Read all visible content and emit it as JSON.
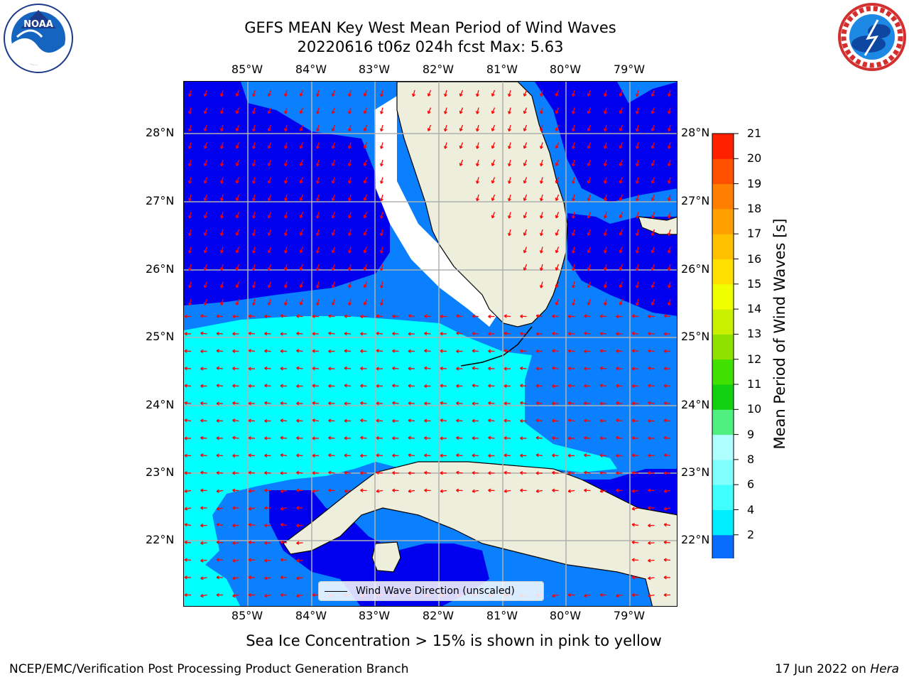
{
  "title": {
    "line1": "GEFS MEAN Key West Mean Period of Wind Waves",
    "line2": "20220616 t06z 024h fcst   Max: 5.63"
  },
  "logos": {
    "left": "NOAA",
    "right": "NATIONAL WEATHER SERVICE"
  },
  "axes": {
    "lon_labels": [
      "85°W",
      "84°W",
      "83°W",
      "82°W",
      "81°W",
      "80°W",
      "79°W"
    ],
    "lat_labels": [
      "28°N",
      "27°N",
      "26°N",
      "25°N",
      "24°N",
      "23°N",
      "22°N"
    ]
  },
  "legend": {
    "label": "Wind Wave Direction (unscaled)"
  },
  "colorbar": {
    "label": "Mean Period of Wind Waves [s]",
    "ticks": [
      "2",
      "4",
      "6",
      "8",
      "9",
      "10",
      "11",
      "12",
      "13",
      "14",
      "15",
      "16",
      "17",
      "18",
      "19",
      "20",
      "21"
    ],
    "colors": [
      "#0a6cff",
      "#00eeff",
      "#40ffff",
      "#80ffff",
      "#b0ffff",
      "#50f080",
      "#10d010",
      "#40e000",
      "#90e000",
      "#c8f000",
      "#f0ff00",
      "#ffe000",
      "#ffc000",
      "#ffa000",
      "#ff8000",
      "#ff5000",
      "#ff2000",
      "#ff0000"
    ],
    "under_color": "#0000ee"
  },
  "subtitle": "Sea Ice Concentration > 15% is shown in pink to yellow",
  "footer": {
    "left": "NCEP/EMC/Verification Post Processing Product Generation Branch",
    "right_date": "17 Jun 2022 on ",
    "right_host": "Hera"
  },
  "map_colors": {
    "land": "#eeeedd",
    "deep": "#0000ee",
    "mid": "#0a80ff",
    "light": "#00ffff",
    "arrow": "#ff0000"
  }
}
